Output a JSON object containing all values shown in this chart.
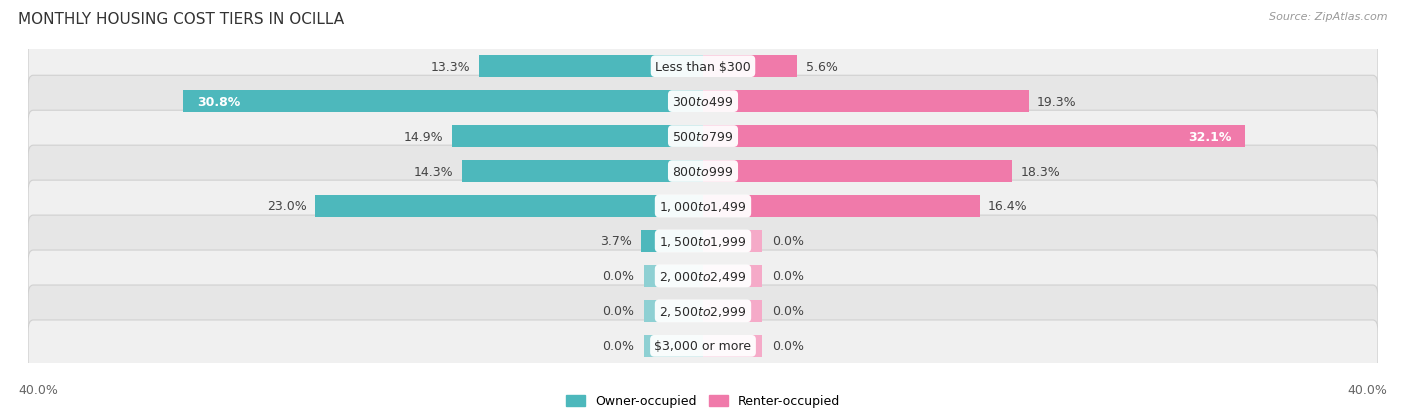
{
  "title": "MONTHLY HOUSING COST TIERS IN OCILLA",
  "source": "Source: ZipAtlas.com",
  "categories": [
    "Less than $300",
    "$300 to $499",
    "$500 to $799",
    "$800 to $999",
    "$1,000 to $1,499",
    "$1,500 to $1,999",
    "$2,000 to $2,499",
    "$2,500 to $2,999",
    "$3,000 or more"
  ],
  "owner_values": [
    13.3,
    30.8,
    14.9,
    14.3,
    23.0,
    3.7,
    0.0,
    0.0,
    0.0
  ],
  "renter_values": [
    5.6,
    19.3,
    32.1,
    18.3,
    16.4,
    0.0,
    0.0,
    0.0,
    0.0
  ],
  "owner_color": "#4db8bc",
  "renter_color": "#f07aaa",
  "owner_color_light": "#8ed0d3",
  "renter_color_light": "#f5aac8",
  "row_bg_even": "#f0f0f0",
  "row_bg_odd": "#e6e6e6",
  "axis_limit": 40.0,
  "stub_size": 3.5,
  "title_fontsize": 11,
  "label_fontsize": 9,
  "tick_fontsize": 9,
  "source_fontsize": 8,
  "category_fontsize": 9,
  "background_color": "#ffffff",
  "legend_owner_label": "Owner-occupied",
  "legend_renter_label": "Renter-occupied"
}
